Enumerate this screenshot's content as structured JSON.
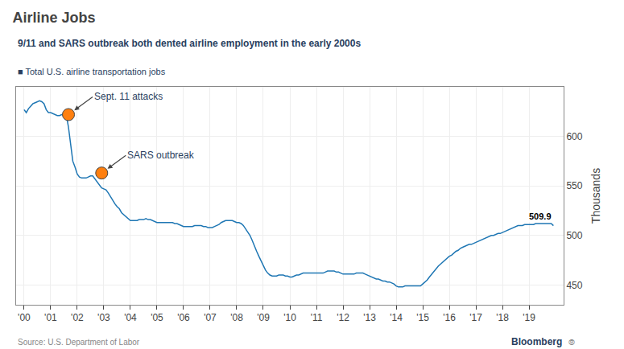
{
  "chart_data": {
    "type": "line",
    "title": "Airline Jobs",
    "subtitle": "9/11 and SARS outbreak both dented airline employment in the early 2000s",
    "ylabel": "Thousands",
    "footer": [
      "Source: U.S. Department of Labor",
      "Bloomberg",
      "⦾"
    ],
    "grid": true,
    "xlim": [
      1999.7,
      2020.3
    ],
    "ylim": [
      430,
      650
    ],
    "yticks": [
      450,
      500,
      550,
      600
    ],
    "xticks": [
      {
        "value": 2000,
        "label": "'00"
      },
      {
        "value": 2001,
        "label": "'01"
      },
      {
        "value": 2002,
        "label": "'02"
      },
      {
        "value": 2003,
        "label": "'03"
      },
      {
        "value": 2004,
        "label": "'04"
      },
      {
        "value": 2005,
        "label": "'05"
      },
      {
        "value": 2006,
        "label": "'06"
      },
      {
        "value": 2007,
        "label": "'07"
      },
      {
        "value": 2008,
        "label": "'08"
      },
      {
        "value": 2009,
        "label": "'09"
      },
      {
        "value": 2010,
        "label": "'10"
      },
      {
        "value": 2011,
        "label": "'11"
      },
      {
        "value": 2012,
        "label": "'12"
      },
      {
        "value": 2013,
        "label": "'13"
      },
      {
        "value": 2014,
        "label": "'14"
      },
      {
        "value": 2015,
        "label": "'15"
      },
      {
        "value": 2016,
        "label": "'16"
      },
      {
        "value": 2017,
        "label": "'17"
      },
      {
        "value": 2018,
        "label": "'18"
      },
      {
        "value": 2019,
        "label": "'19"
      }
    ],
    "annotations": [
      {
        "text": "Sept. 11 attacks",
        "x": 2001.67,
        "y": 622,
        "marker": "circle"
      },
      {
        "text": "SARS outbreak",
        "x": 2002.92,
        "y": 563,
        "marker": "circle"
      },
      {
        "text": "509.9",
        "x": 2019.9166666667,
        "y": 509.9
      }
    ],
    "x": [
      2000,
      2000.0833333333,
      2000.1666666667,
      2000.25,
      2000.3333333333,
      2000.4166666667,
      2000.5,
      2000.5833333333,
      2000.6666666667,
      2000.75,
      2000.8333333333,
      2000.9166666667,
      2001,
      2001.0833333333,
      2001.1666666667,
      2001.25,
      2001.3333333333,
      2001.4166666667,
      2001.5,
      2001.5833333333,
      2001.6666666667,
      2001.75,
      2001.8333333333,
      2001.9166666667,
      2002,
      2002.0833333333,
      2002.1666666667,
      2002.25,
      2002.3333333333,
      2002.4166666667,
      2002.5,
      2002.5833333333,
      2002.6666666667,
      2002.75,
      2002.8333333333,
      2002.9166666667,
      2003,
      2003.0833333333,
      2003.1666666667,
      2003.25,
      2003.3333333333,
      2003.4166666667,
      2003.5,
      2003.5833333333,
      2003.6666666667,
      2003.75,
      2003.8333333333,
      2003.9166666667,
      2004,
      2004.0833333333,
      2004.1666666667,
      2004.25,
      2004.3333333333,
      2004.4166666667,
      2004.5,
      2004.5833333333,
      2004.6666666667,
      2004.75,
      2004.8333333333,
      2004.9166666667,
      2005,
      2005.0833333333,
      2005.1666666667,
      2005.25,
      2005.3333333333,
      2005.4166666667,
      2005.5,
      2005.5833333333,
      2005.6666666667,
      2005.75,
      2005.8333333333,
      2005.9166666667,
      2006,
      2006.0833333333,
      2006.1666666667,
      2006.25,
      2006.3333333333,
      2006.4166666667,
      2006.5,
      2006.5833333333,
      2006.6666666667,
      2006.75,
      2006.8333333333,
      2006.9166666667,
      2007,
      2007.0833333333,
      2007.1666666667,
      2007.25,
      2007.3333333333,
      2007.4166666667,
      2007.5,
      2007.5833333333,
      2007.6666666667,
      2007.75,
      2007.8333333333,
      2007.9166666667,
      2008,
      2008.0833333333,
      2008.1666666667,
      2008.25,
      2008.3333333333,
      2008.4166666667,
      2008.5,
      2008.5833333333,
      2008.6666666667,
      2008.75,
      2008.8333333333,
      2008.9166666667,
      2009,
      2009.0833333333,
      2009.1666666667,
      2009.25,
      2009.3333333333,
      2009.4166666667,
      2009.5,
      2009.5833333333,
      2009.6666666667,
      2009.75,
      2009.8333333333,
      2009.9166666667,
      2010,
      2010.0833333333,
      2010.1666666667,
      2010.25,
      2010.3333333333,
      2010.4166666667,
      2010.5,
      2010.5833333333,
      2010.6666666667,
      2010.75,
      2010.8333333333,
      2010.9166666667,
      2011,
      2011.0833333333,
      2011.1666666667,
      2011.25,
      2011.3333333333,
      2011.4166666667,
      2011.5,
      2011.5833333333,
      2011.6666666667,
      2011.75,
      2011.8333333333,
      2011.9166666667,
      2012,
      2012.0833333333,
      2012.1666666667,
      2012.25,
      2012.3333333333,
      2012.4166666667,
      2012.5,
      2012.5833333333,
      2012.6666666667,
      2012.75,
      2012.8333333333,
      2012.9166666667,
      2013,
      2013.0833333333,
      2013.1666666667,
      2013.25,
      2013.3333333333,
      2013.4166666667,
      2013.5,
      2013.5833333333,
      2013.6666666667,
      2013.75,
      2013.8333333333,
      2013.9166666667,
      2014,
      2014.0833333333,
      2014.1666666667,
      2014.25,
      2014.3333333333,
      2014.4166666667,
      2014.5,
      2014.5833333333,
      2014.6666666667,
      2014.75,
      2014.8333333333,
      2014.9166666667,
      2015,
      2015.0833333333,
      2015.1666666667,
      2015.25,
      2015.3333333333,
      2015.4166666667,
      2015.5,
      2015.5833333333,
      2015.6666666667,
      2015.75,
      2015.8333333333,
      2015.9166666667,
      2016,
      2016.0833333333,
      2016.1666666667,
      2016.25,
      2016.3333333333,
      2016.4166666667,
      2016.5,
      2016.5833333333,
      2016.6666666667,
      2016.75,
      2016.8333333333,
      2016.9166666667,
      2017,
      2017.0833333333,
      2017.1666666667,
      2017.25,
      2017.3333333333,
      2017.4166666667,
      2017.5,
      2017.5833333333,
      2017.6666666667,
      2017.75,
      2017.8333333333,
      2017.9166666667,
      2018,
      2018.0833333333,
      2018.1666666667,
      2018.25,
      2018.3333333333,
      2018.4166666667,
      2018.5,
      2018.5833333333,
      2018.6666666667,
      2018.75,
      2018.8333333333,
      2018.9166666667,
      2019,
      2019.0833333333,
      2019.1666666667,
      2019.25,
      2019.3333333333,
      2019.4166666667,
      2019.5,
      2019.5833333333,
      2019.6666666667,
      2019.75,
      2019.8333333333,
      2019.9166666667
    ],
    "series": [
      {
        "name": "■ Total U.S. airline transportation jobs",
        "values": [
          627,
          624,
          628,
          631,
          633,
          634,
          635,
          636,
          635,
          633,
          627,
          624,
          624,
          623,
          622,
          621,
          621,
          622,
          622,
          622,
          610,
          590,
          575,
          569,
          562,
          559,
          558,
          558,
          558,
          559,
          560,
          560,
          557,
          553,
          551,
          548,
          547,
          546,
          543,
          539,
          536,
          532,
          529,
          527,
          523,
          521,
          519,
          517,
          515,
          515,
          515,
          515,
          516,
          516,
          516,
          517,
          516,
          516,
          515,
          514,
          513,
          513,
          513,
          513,
          513,
          513,
          513,
          513,
          512,
          512,
          511,
          510,
          509,
          509,
          509,
          509,
          509,
          510,
          510,
          510,
          510,
          509,
          509,
          508,
          508,
          508,
          509,
          510,
          511,
          513,
          514,
          515,
          515,
          515,
          515,
          514,
          513,
          513,
          512,
          510,
          507,
          504,
          500,
          495,
          489,
          484,
          479,
          474,
          469,
          465,
          462,
          460,
          459,
          459,
          459,
          460,
          460,
          460,
          459,
          459,
          458,
          458,
          459,
          460,
          460,
          461,
          462,
          462,
          462,
          462,
          462,
          462,
          462,
          462,
          462,
          462,
          463,
          464,
          464,
          464,
          464,
          463,
          463,
          462,
          461,
          461,
          461,
          461,
          461,
          461,
          462,
          462,
          462,
          462,
          461,
          460,
          459,
          458,
          457,
          456,
          456,
          455,
          454,
          454,
          453,
          453,
          452,
          451,
          449,
          448,
          448,
          448,
          449,
          449,
          449,
          449,
          449,
          449,
          449,
          449,
          451,
          453,
          455,
          458,
          461,
          464,
          467,
          469,
          471,
          473,
          475,
          477,
          479,
          480,
          482,
          484,
          485,
          487,
          488,
          489,
          490,
          491,
          491,
          492,
          493,
          494,
          495,
          496,
          497,
          498,
          499,
          500,
          500,
          501,
          502,
          502,
          503,
          504,
          505,
          506,
          507,
          508,
          509,
          510,
          510,
          510,
          511,
          511,
          511,
          511,
          511,
          512,
          512,
          512,
          512,
          512,
          512,
          512,
          512,
          509.9
        ]
      }
    ]
  }
}
